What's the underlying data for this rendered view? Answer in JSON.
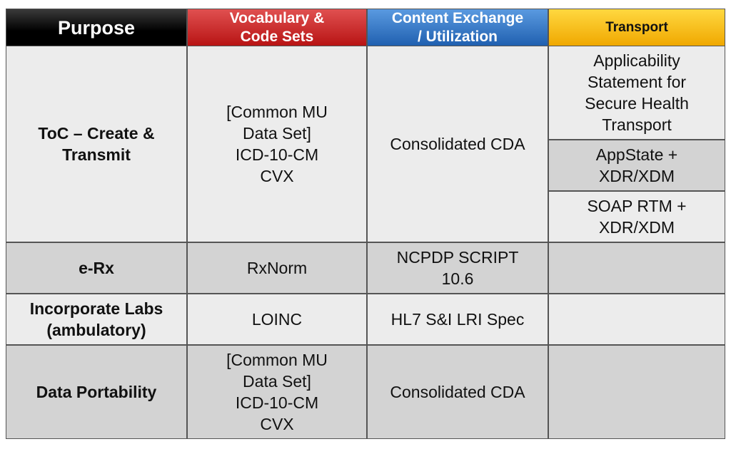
{
  "table": {
    "header": [
      [
        "Purpose"
      ],
      [
        "Vocabulary &",
        "Code Sets"
      ],
      [
        "Content Exchange",
        "/ Utilization"
      ],
      [
        "Transport"
      ]
    ],
    "rows": [
      {
        "purpose": [
          "ToC – Create &",
          "Transmit"
        ],
        "vocabulary": [
          "[Common MU",
          "Data Set]",
          "ICD-10-CM",
          "CVX"
        ],
        "content": [
          "Consolidated CDA"
        ],
        "transport": [
          [
            "Applicability",
            "Statement for",
            "Secure Health",
            "Transport"
          ],
          [
            "AppState +",
            "XDR/XDM"
          ],
          [
            "SOAP RTM +",
            "XDR/XDM"
          ]
        ]
      },
      {
        "purpose": [
          "e-Rx"
        ],
        "vocabulary": [
          "RxNorm"
        ],
        "content": [
          "NCPDP SCRIPT",
          "10.6"
        ]
      },
      {
        "purpose": [
          "Incorporate Labs",
          "(ambulatory)"
        ],
        "vocabulary": [
          "LOINC"
        ],
        "content": [
          "HL7 S&I LRI Spec"
        ]
      },
      {
        "purpose": [
          "Data Portability"
        ],
        "vocabulary": [
          "[Common MU",
          "Data Set]",
          "ICD-10-CM",
          "CVX"
        ],
        "content": [
          "Consolidated CDA"
        ]
      }
    ]
  }
}
